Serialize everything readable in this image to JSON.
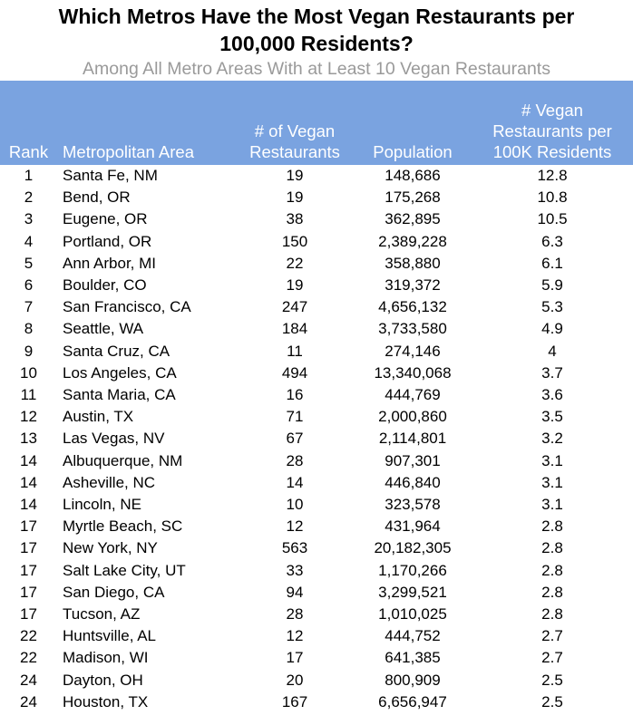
{
  "title_line1": "Which Metros Have the Most Vegan Restaurants per",
  "title_line2": "100,000 Residents?",
  "subtitle": "Among All Metro Areas With at Least 10 Vegan Restaurants",
  "header": {
    "rank": "Rank",
    "area": "Metropolitan Area",
    "count_l1": "# of Vegan",
    "count_l2": "Restaurants",
    "population": "Population",
    "per_l1": "# Vegan",
    "per_l2": "Restaurants per",
    "per_l3": "100K Residents"
  },
  "accent_color": "#7aa3e0",
  "chart_data": {
    "type": "table",
    "title": "Which Metros Have the Most Vegan Restaurants per 100,000 Residents?",
    "subtitle": "Among All Metro Areas With at Least 10 Vegan Restaurants",
    "columns": [
      "Rank",
      "Metropolitan Area",
      "# of Vegan Restaurants",
      "Population",
      "# Vegan Restaurants per 100K Residents"
    ],
    "rows": [
      [
        "1",
        "Santa Fe, NM",
        "19",
        "148,686",
        "12.8"
      ],
      [
        "2",
        "Bend, OR",
        "19",
        "175,268",
        "10.8"
      ],
      [
        "3",
        "Eugene, OR",
        "38",
        "362,895",
        "10.5"
      ],
      [
        "4",
        "Portland, OR",
        "150",
        "2,389,228",
        "6.3"
      ],
      [
        "5",
        "Ann Arbor, MI",
        "22",
        "358,880",
        "6.1"
      ],
      [
        "6",
        "Boulder, CO",
        "19",
        "319,372",
        "5.9"
      ],
      [
        "7",
        "San Francisco, CA",
        "247",
        "4,656,132",
        "5.3"
      ],
      [
        "8",
        "Seattle, WA",
        "184",
        "3,733,580",
        "4.9"
      ],
      [
        "9",
        "Santa Cruz, CA",
        "11",
        "274,146",
        "4"
      ],
      [
        "10",
        "Los Angeles, CA",
        "494",
        "13,340,068",
        "3.7"
      ],
      [
        "11",
        "Santa Maria, CA",
        "16",
        "444,769",
        "3.6"
      ],
      [
        "12",
        "Austin, TX",
        "71",
        "2,000,860",
        "3.5"
      ],
      [
        "13",
        "Las Vegas, NV",
        "67",
        "2,114,801",
        "3.2"
      ],
      [
        "14",
        "Albuquerque, NM",
        "28",
        "907,301",
        "3.1"
      ],
      [
        "14",
        "Asheville, NC",
        "14",
        "446,840",
        "3.1"
      ],
      [
        "14",
        "Lincoln, NE",
        "10",
        "323,578",
        "3.1"
      ],
      [
        "17",
        "Myrtle Beach, SC",
        "12",
        "431,964",
        "2.8"
      ],
      [
        "17",
        "New York, NY",
        "563",
        "20,182,305",
        "2.8"
      ],
      [
        "17",
        "Salt Lake City, UT",
        "33",
        "1,170,266",
        "2.8"
      ],
      [
        "17",
        "San Diego, CA",
        "94",
        "3,299,521",
        "2.8"
      ],
      [
        "17",
        "Tucson, AZ",
        "28",
        "1,010,025",
        "2.8"
      ],
      [
        "22",
        "Huntsville, AL",
        "12",
        "444,752",
        "2.7"
      ],
      [
        "22",
        "Madison, WI",
        "17",
        "641,385",
        "2.7"
      ],
      [
        "24",
        "Dayton, OH",
        "20",
        "800,909",
        "2.5"
      ],
      [
        "24",
        "Houston, TX",
        "167",
        "6,656,947",
        "2.5"
      ]
    ]
  }
}
